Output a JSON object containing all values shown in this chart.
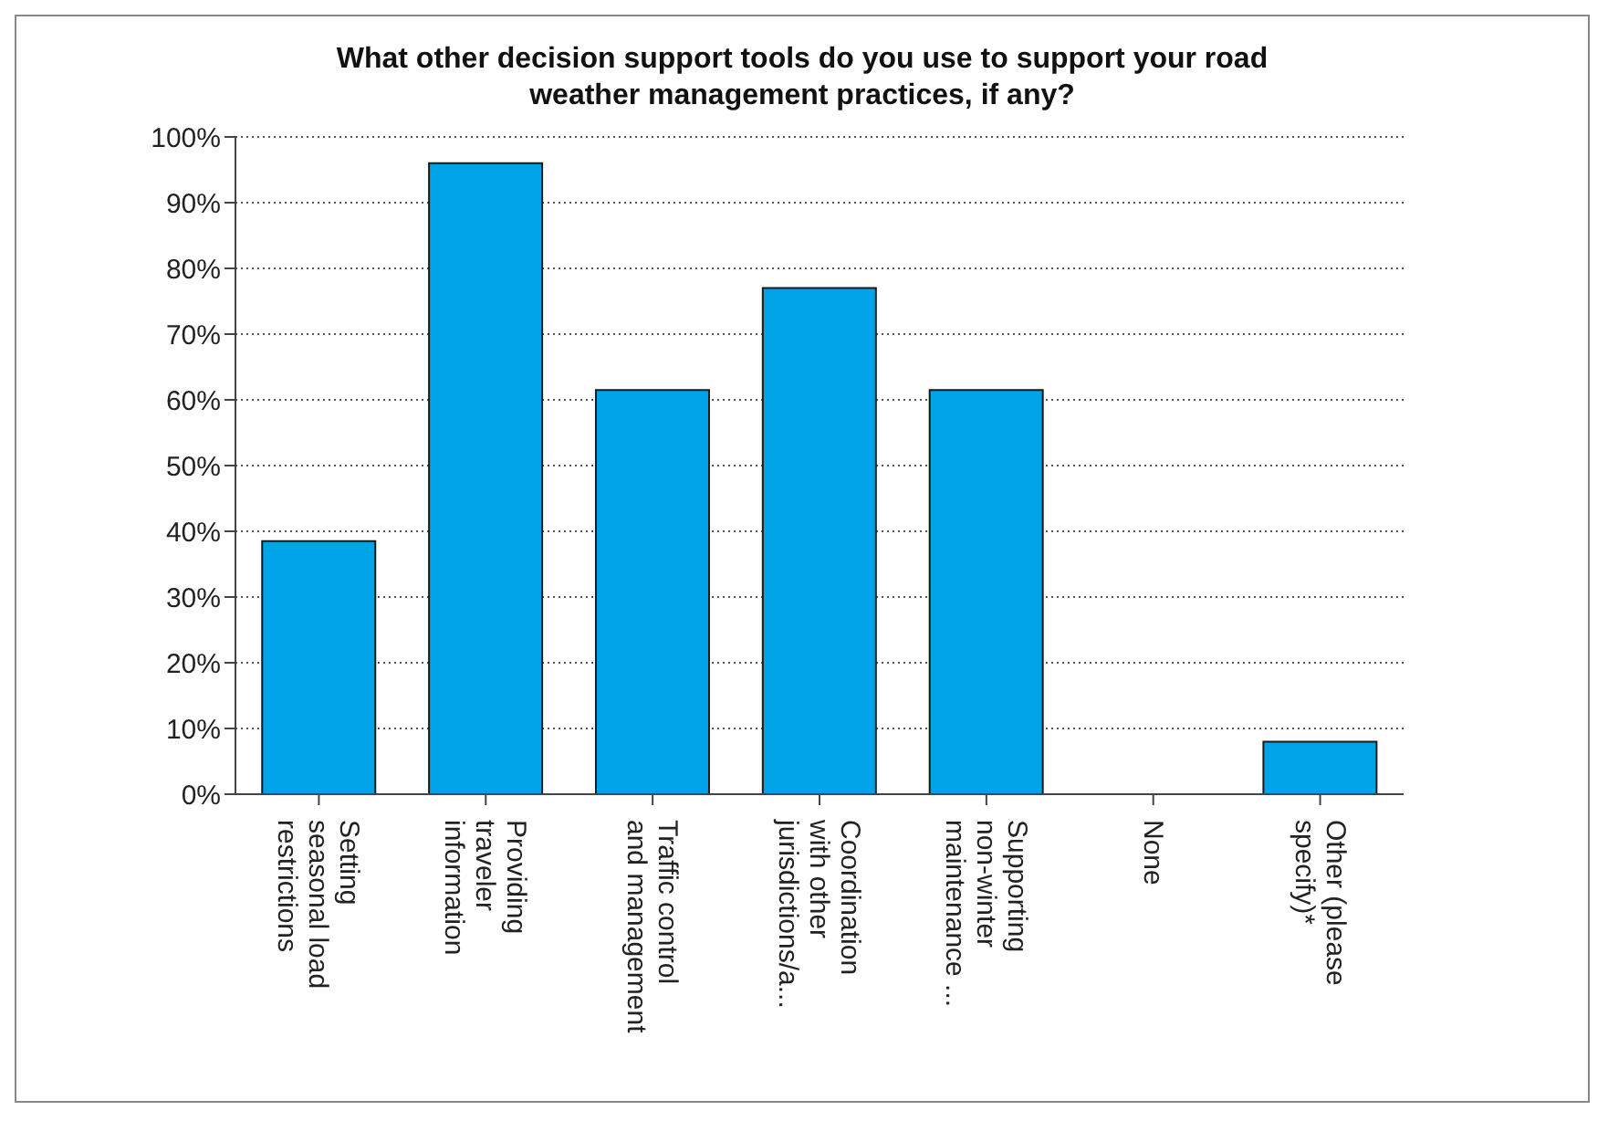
{
  "chart_data": {
    "type": "bar",
    "title": "What other decision support tools do you use to support your road weather management practices, if any?",
    "categories": [
      "Setting seasonal load restrictions",
      "Providing traveler information",
      "Traffic control and management",
      "Coordination with other jurisdictions/a...",
      "Supporting non-winter maintenance ...",
      "None",
      "Other (please specify)*"
    ],
    "values": [
      38.5,
      96,
      61.5,
      77,
      61.5,
      0,
      8
    ],
    "color": "#00a2e8",
    "ylim": [
      0,
      100
    ],
    "yticks": [
      {
        "value": 0,
        "label": "0%"
      },
      {
        "value": 10,
        "label": "10%"
      },
      {
        "value": 20,
        "label": "20%"
      },
      {
        "value": 30,
        "label": "30%"
      },
      {
        "value": 40,
        "label": "40%"
      },
      {
        "value": 50,
        "label": "50%"
      },
      {
        "value": 60,
        "label": "60%"
      },
      {
        "value": 70,
        "label": "70%"
      },
      {
        "value": 80,
        "label": "80%"
      },
      {
        "value": 90,
        "label": "90%"
      },
      {
        "value": 100,
        "label": "100%"
      }
    ],
    "grid": "y",
    "legend": false
  }
}
